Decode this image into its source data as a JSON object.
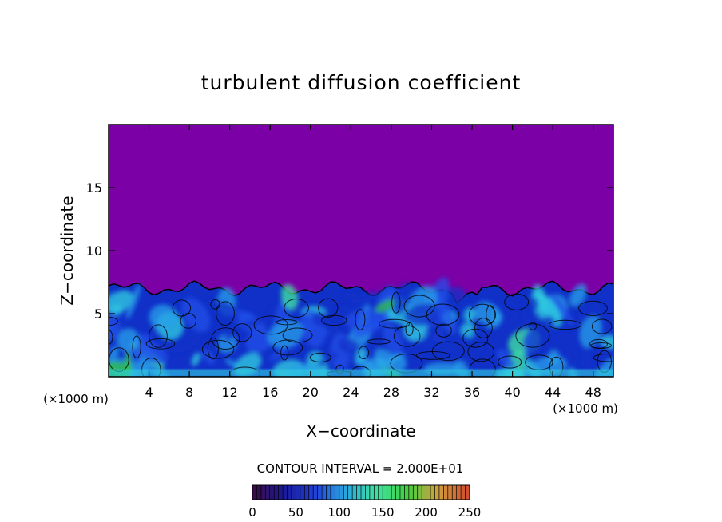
{
  "chart_data": {
    "type": "heatmap",
    "title": "turbulent diffusion coefficient",
    "xlabel": "X−coordinate",
    "ylabel": "Z−coordinate",
    "x_unit_left": "(×1000 m)",
    "x_unit_right": "(×1000 m)",
    "xlim": [
      0,
      50
    ],
    "ylim": [
      0,
      20
    ],
    "xticks": [
      4,
      8,
      12,
      16,
      20,
      24,
      28,
      32,
      36,
      40,
      44,
      48
    ],
    "yticks": [
      5,
      10,
      15
    ],
    "contour_interval_label": "CONTOUR INTERVAL = 2.000E+01",
    "colorbar": {
      "range": [
        0,
        250
      ],
      "ticks": [
        0,
        50,
        100,
        150,
        200,
        250
      ],
      "colors": [
        "#3a0a4a",
        "#1a1a9a",
        "#2040d8",
        "#2aa8e0",
        "#40e0a0",
        "#40d040",
        "#d0a040",
        "#d05030"
      ]
    },
    "background_color": "#7b00a6",
    "field_colors": [
      "#1030c8",
      "#2050e8",
      "#28a0e8",
      "#30d0e0",
      "#40e8a0",
      "#30c040"
    ],
    "boundary_layer_top_approx": 7
  }
}
